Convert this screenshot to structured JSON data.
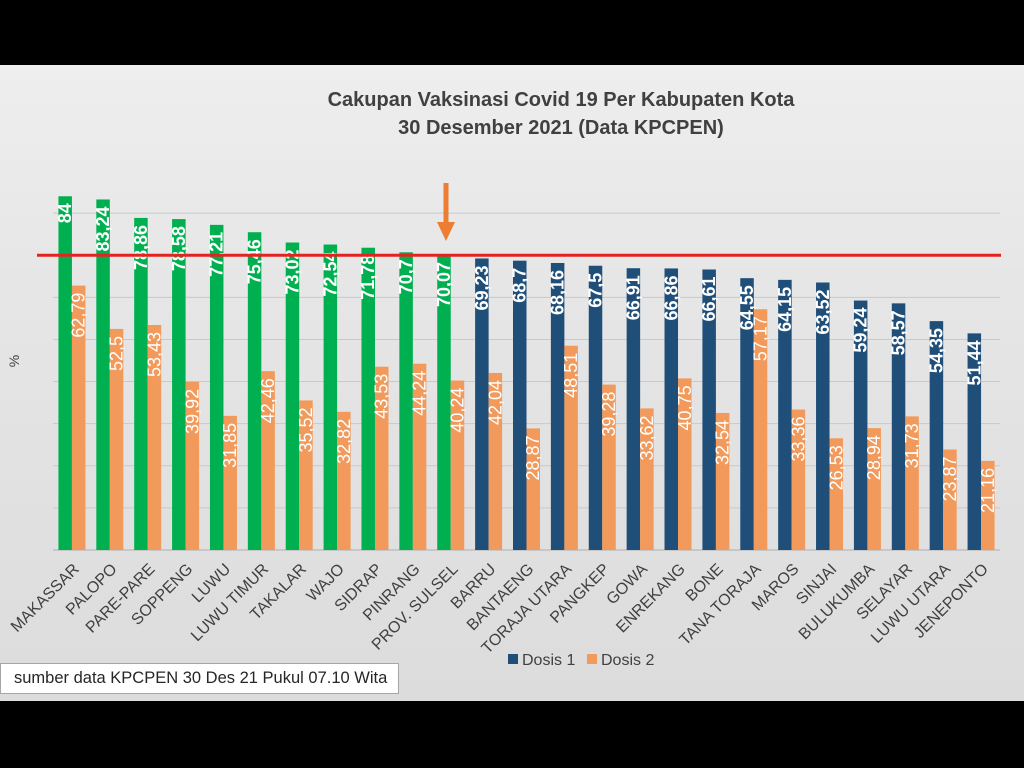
{
  "chart_data": {
    "type": "bar",
    "title": "Cakupan Vaksinasi Covid 19 Per Kabupaten Kota",
    "subtitle": "30 Desember 2021 (Data KPCPEN)",
    "ylabel": "%",
    "ylim": [
      0,
      90
    ],
    "grid": true,
    "legend": "bottom",
    "categories": [
      "MAKASSAR",
      "PALOPO",
      "PARE-PARE",
      "SOPPENG",
      "LUWU",
      "LUWU TIMUR",
      "TAKALAR",
      "WAJO",
      "SIDRAP",
      "PINRANG",
      "PROV. SULSEL",
      "BARRU",
      "BANTAENG",
      "TORAJA UTARA",
      "PANGKEP",
      "GOWA",
      "ENREKANG",
      "BONE",
      "TANA TORAJA",
      "MAROS",
      "SINJAI",
      "BULUKUMBA",
      "SELAYAR",
      "LUWU UTARA",
      "JENEPONTO"
    ],
    "series": [
      {
        "name": "Dosis 1",
        "color": "#1f4e79",
        "above_target_color": "#00b050",
        "values": [
          84,
          83.24,
          78.86,
          78.58,
          77.21,
          75.46,
          73.02,
          72.54,
          71.78,
          70.7,
          70.07,
          69.23,
          68.7,
          68.16,
          67.5,
          66.91,
          66.86,
          66.61,
          64.55,
          64.15,
          63.52,
          59.24,
          58.57,
          54.35,
          51.44
        ],
        "labels": [
          "84",
          "83,24",
          "78,86",
          "78,58",
          "77,21",
          "75,46",
          "73,02",
          "72,54",
          "71,78",
          "70,7",
          "70,07",
          "69,23",
          "68,7",
          "68,16",
          "67,5",
          "66,91",
          "66,86",
          "66,61",
          "64,55",
          "64,15",
          "63,52",
          "59,24",
          "58,57",
          "54,35",
          "51,44"
        ]
      },
      {
        "name": "Dosis 2",
        "color": "#f19a5b",
        "values": [
          62.79,
          52.5,
          53.43,
          39.92,
          31.85,
          42.46,
          35.52,
          32.82,
          43.53,
          44.24,
          40.24,
          42.04,
          28.87,
          48.51,
          39.28,
          33.62,
          40.75,
          32.54,
          57.17,
          33.36,
          26.53,
          28.94,
          31.73,
          23.87,
          21.16
        ],
        "labels": [
          "62,79",
          "52,5",
          "53,43",
          "39,92",
          "31,85",
          "42,46",
          "35,52",
          "32,82",
          "43,53",
          "44,24",
          "40,24",
          "42,04",
          "28,87",
          "48,51",
          "39,28",
          "33,62",
          "40,75",
          "32,54",
          "57,17",
          "33,36",
          "26,53",
          "28,94",
          "31,73",
          "23,87",
          "21,16"
        ]
      }
    ],
    "reference_line": {
      "value": 70,
      "color": "#e42320"
    },
    "annotation": {
      "type": "arrow",
      "category": "PROV. SULSEL",
      "color": "#ed7d31"
    }
  },
  "footer": {
    "source_note": "sumber data KPCPEN 30 Des 21 Pukul 07.10 Wita"
  }
}
